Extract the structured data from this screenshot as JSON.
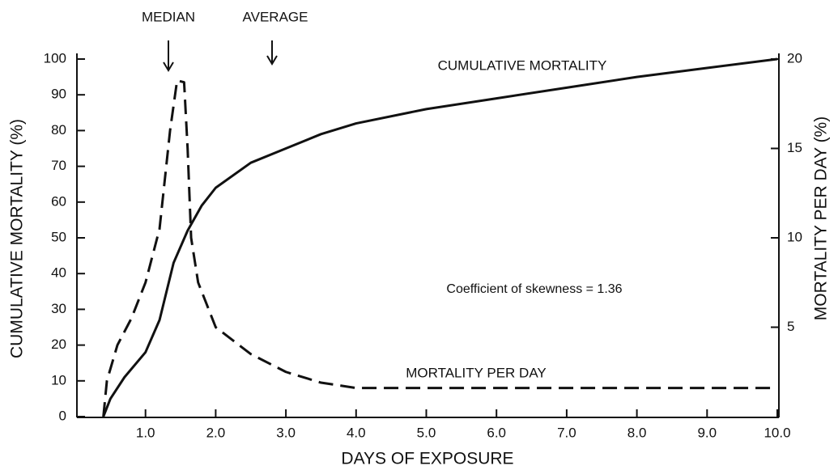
{
  "chart_data": {
    "type": "line",
    "xlabel": "DAYS OF EXPOSURE",
    "ylabel": "CUMULATIVE MORTALITY (%)",
    "y2label": "MORTALITY PER DAY (%)",
    "annotations": [
      "MEDIAN",
      "AVERAGE",
      "Coefficient of skewness = 1.36"
    ],
    "xlim": [
      0,
      10
    ],
    "xticks": [
      {
        "value": 1,
        "label": "1.0"
      },
      {
        "value": 2,
        "label": "2.0"
      },
      {
        "value": 3,
        "label": "3.0"
      },
      {
        "value": 4,
        "label": "4.0"
      },
      {
        "value": 5,
        "label": "5.0"
      },
      {
        "value": 6,
        "label": "6.0"
      },
      {
        "value": 7,
        "label": "7.0"
      },
      {
        "value": 8,
        "label": "8.0"
      },
      {
        "value": 9,
        "label": "9.0"
      },
      {
        "value": 10,
        "label": "10.0"
      }
    ],
    "ylim": [
      0,
      100
    ],
    "yticks": [
      0,
      10,
      20,
      30,
      40,
      50,
      60,
      70,
      80,
      90,
      100
    ],
    "y2lim": [
      0,
      20
    ],
    "y2ticks": [
      5,
      10,
      15,
      20
    ],
    "series": [
      {
        "name": "CUMULATIVE MORTALITY",
        "color": "#111111",
        "dash": false,
        "x": [
          0.4,
          0.5,
          0.7,
          1.0,
          1.2,
          1.4,
          1.6,
          1.8,
          2.0,
          2.5,
          3.0,
          3.5,
          4.0,
          5.0,
          6.0,
          7.0,
          8.0,
          9.0,
          10.0
        ],
        "values": [
          0,
          5,
          11,
          18,
          27,
          43,
          52,
          59,
          64,
          71,
          75,
          79,
          82,
          86,
          89,
          92,
          95,
          97.5,
          100
        ]
      },
      {
        "name": "MORTALITY PER DAY",
        "color": "#111111",
        "dash": true,
        "axis": "y2",
        "x": [
          0.4,
          0.45,
          0.6,
          0.8,
          1.0,
          1.2,
          1.35,
          1.45,
          1.55,
          1.6,
          1.65,
          1.75,
          2.0,
          2.5,
          3.0,
          3.5,
          4.0,
          5.0,
          10.0
        ],
        "values": [
          0,
          2,
          4,
          5.5,
          7.5,
          10.5,
          16,
          18.8,
          18.7,
          15,
          10,
          7.5,
          5,
          3.5,
          2.5,
          1.9,
          1.6,
          1.6,
          1.6
        ]
      }
    ]
  }
}
